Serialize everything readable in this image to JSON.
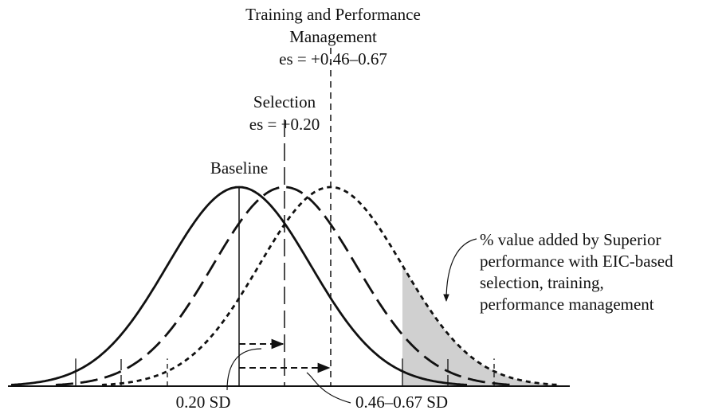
{
  "labels": {
    "training": [
      "Training and Performance",
      "Management",
      "es = +0.46–0.67"
    ],
    "selection": [
      "Selection",
      "es = +0.20"
    ],
    "baseline": "Baseline",
    "annotation": [
      "% value added by Superior",
      "performance with EIC-based",
      "selection, training,",
      "performance management"
    ],
    "shift_small": "0.20 SD",
    "shift_large": "0.46–0.67 SD"
  }
}
